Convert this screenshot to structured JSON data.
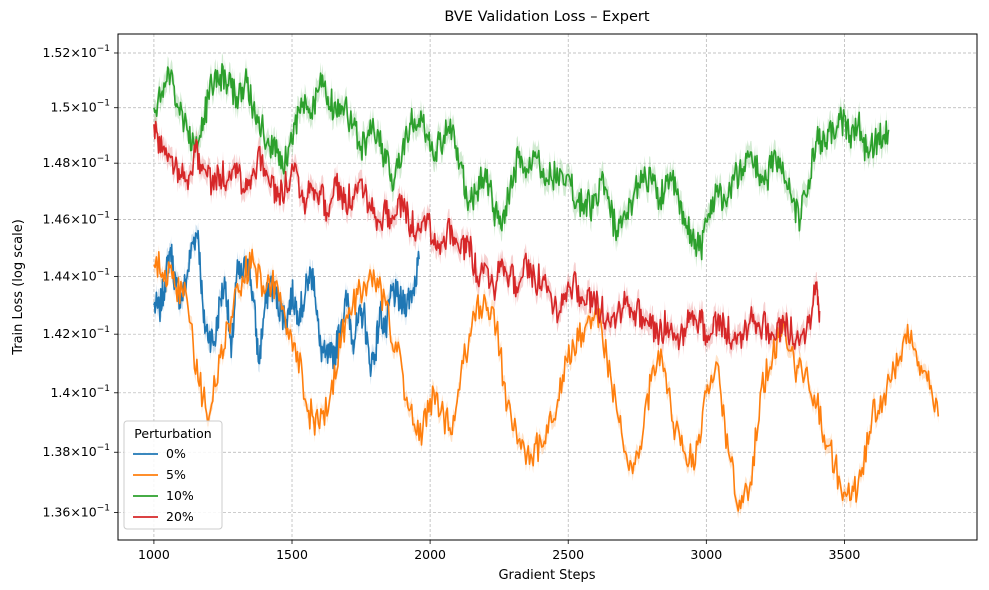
{
  "chart_data": {
    "type": "line",
    "title": "BVE Validation Loss – Expert",
    "xlabel": "Gradient Steps",
    "ylabel": "Train Loss (log scale)",
    "x_scale": "linear",
    "y_scale": "log",
    "xlim": [
      870,
      3980
    ],
    "ylim": [
      0.1351,
      0.1527
    ],
    "x_ticks": [
      1000,
      1500,
      2000,
      2500,
      3000,
      3500
    ],
    "y_ticks": [
      {
        "value": 0.136,
        "mant": "1.36",
        "exp": "−1"
      },
      {
        "value": 0.138,
        "mant": "1.38",
        "exp": "−1"
      },
      {
        "value": 0.14,
        "mant": "1.4",
        "exp": "−1"
      },
      {
        "value": 0.142,
        "mant": "1.42",
        "exp": "−1"
      },
      {
        "value": 0.144,
        "mant": "1.44",
        "exp": "−1"
      },
      {
        "value": 0.146,
        "mant": "1.46",
        "exp": "−1"
      },
      {
        "value": 0.148,
        "mant": "1.48",
        "exp": "−1"
      },
      {
        "value": 0.15,
        "mant": "1.5",
        "exp": "−1"
      },
      {
        "value": 0.152,
        "mant": "1.52",
        "exp": "−1"
      }
    ],
    "tick_base": "10",
    "grid": true,
    "legend": {
      "title": "Perturbation",
      "placement": "lower-left"
    },
    "series": [
      {
        "name": "0%",
        "color": "#1f77b4",
        "band": 0.0003,
        "x": [
          1000,
          1020,
          1040,
          1060,
          1080,
          1100,
          1120,
          1140,
          1160,
          1180,
          1200,
          1220,
          1240,
          1260,
          1280,
          1300,
          1320,
          1340,
          1360,
          1380,
          1400,
          1420,
          1440,
          1460,
          1480,
          1500,
          1520,
          1540,
          1560,
          1580,
          1600,
          1620,
          1640,
          1660,
          1680,
          1700,
          1720,
          1740,
          1760,
          1780,
          1800,
          1820,
          1840,
          1860,
          1880,
          1900,
          1920,
          1940,
          1960
        ],
        "y": [
          0.143,
          0.1428,
          0.1438,
          0.145,
          0.1436,
          0.1432,
          0.144,
          0.1452,
          0.1456,
          0.1424,
          0.142,
          0.1417,
          0.1432,
          0.1438,
          0.1412,
          0.1441,
          0.144,
          0.1446,
          0.1432,
          0.141,
          0.1428,
          0.1438,
          0.1434,
          0.1428,
          0.1425,
          0.1434,
          0.1428,
          0.143,
          0.144,
          0.144,
          0.1416,
          0.1412,
          0.1412,
          0.1415,
          0.1425,
          0.1432,
          0.1418,
          0.1424,
          0.1428,
          0.141,
          0.1413,
          0.1428,
          0.142,
          0.1435,
          0.1433,
          0.143,
          0.1432,
          0.1436,
          0.1446
        ]
      },
      {
        "name": "5%",
        "color": "#ff7f0e",
        "band": 0.00025,
        "x": [
          1000,
          1040,
          1080,
          1120,
          1160,
          1200,
          1240,
          1280,
          1320,
          1360,
          1400,
          1440,
          1480,
          1520,
          1560,
          1600,
          1640,
          1680,
          1720,
          1760,
          1800,
          1840,
          1880,
          1920,
          1960,
          2000,
          2040,
          2080,
          2120,
          2160,
          2200,
          2240,
          2280,
          2320,
          2360,
          2400,
          2440,
          2480,
          2520,
          2560,
          2600,
          2640,
          2680,
          2720,
          2760,
          2800,
          2840,
          2880,
          2920,
          2960,
          3000,
          3040,
          3080,
          3120,
          3160,
          3200,
          3240,
          3280,
          3320,
          3360,
          3400,
          3440,
          3480,
          3520,
          3560,
          3600,
          3640,
          3680,
          3720,
          3760,
          3800,
          3840
        ],
        "y": [
          0.1444,
          0.1442,
          0.1436,
          0.1432,
          0.1404,
          0.1392,
          0.1412,
          0.1426,
          0.144,
          0.1445,
          0.1434,
          0.1438,
          0.142,
          0.1414,
          0.1394,
          0.1388,
          0.14,
          0.142,
          0.143,
          0.1438,
          0.1438,
          0.143,
          0.1414,
          0.1395,
          0.1384,
          0.1398,
          0.1394,
          0.1386,
          0.141,
          0.1427,
          0.1432,
          0.1422,
          0.1396,
          0.1384,
          0.1376,
          0.1384,
          0.139,
          0.1406,
          0.1416,
          0.1422,
          0.143,
          0.1412,
          0.1392,
          0.1374,
          0.1382,
          0.1404,
          0.1412,
          0.139,
          0.138,
          0.1376,
          0.14,
          0.141,
          0.138,
          0.1364,
          0.137,
          0.1402,
          0.1412,
          0.1424,
          0.1408,
          0.1408,
          0.1396,
          0.1382,
          0.1372,
          0.1364,
          0.1372,
          0.1392,
          0.1398,
          0.1408,
          0.142,
          0.1414,
          0.1404,
          0.1392
        ]
      },
      {
        "name": "10%",
        "color": "#2ca02c",
        "band": 0.0004,
        "x": [
          1000,
          1030,
          1060,
          1090,
          1120,
          1150,
          1180,
          1210,
          1240,
          1270,
          1300,
          1330,
          1360,
          1390,
          1420,
          1450,
          1480,
          1510,
          1540,
          1570,
          1600,
          1630,
          1660,
          1690,
          1720,
          1750,
          1780,
          1810,
          1840,
          1870,
          1900,
          1930,
          1960,
          1990,
          2020,
          2050,
          2080,
          2110,
          2140,
          2170,
          2200,
          2230,
          2260,
          2290,
          2320,
          2350,
          2380,
          2410,
          2440,
          2470,
          2500,
          2530,
          2560,
          2590,
          2620,
          2650,
          2680,
          2710,
          2740,
          2770,
          2800,
          2830,
          2860,
          2890,
          2920,
          2950,
          2980,
          3010,
          3040,
          3070,
          3100,
          3130,
          3160,
          3190,
          3220,
          3250,
          3280,
          3310,
          3340,
          3370,
          3400,
          3430,
          3460,
          3490,
          3520,
          3550,
          3580,
          3610,
          3640,
          3660
        ],
        "y": [
          0.15,
          0.1506,
          0.1512,
          0.15,
          0.1492,
          0.1486,
          0.1496,
          0.1508,
          0.1512,
          0.1508,
          0.1504,
          0.151,
          0.15,
          0.1494,
          0.1486,
          0.1485,
          0.148,
          0.1494,
          0.1502,
          0.1498,
          0.1508,
          0.1504,
          0.1498,
          0.15,
          0.1494,
          0.1486,
          0.149,
          0.1492,
          0.148,
          0.1474,
          0.1486,
          0.1494,
          0.1496,
          0.149,
          0.1484,
          0.149,
          0.1492,
          0.148,
          0.1466,
          0.147,
          0.1478,
          0.1464,
          0.1456,
          0.1472,
          0.1482,
          0.1478,
          0.1484,
          0.1478,
          0.1474,
          0.1478,
          0.1476,
          0.1466,
          0.1466,
          0.1464,
          0.1474,
          0.1464,
          0.1454,
          0.146,
          0.147,
          0.1476,
          0.1474,
          0.1466,
          0.1476,
          0.147,
          0.1458,
          0.1454,
          0.145,
          0.1462,
          0.1472,
          0.1466,
          0.1474,
          0.1478,
          0.1484,
          0.1476,
          0.1474,
          0.1484,
          0.1476,
          0.1466,
          0.146,
          0.1474,
          0.1488,
          0.1486,
          0.1492,
          0.1496,
          0.149,
          0.1494,
          0.1484,
          0.1488,
          0.149,
          0.1492
        ]
      },
      {
        "name": "20%",
        "color": "#d62728",
        "band": 0.00035,
        "x": [
          1000,
          1030,
          1060,
          1090,
          1120,
          1150,
          1180,
          1210,
          1240,
          1270,
          1300,
          1330,
          1360,
          1390,
          1420,
          1450,
          1480,
          1510,
          1540,
          1570,
          1600,
          1630,
          1660,
          1690,
          1720,
          1750,
          1780,
          1810,
          1840,
          1870,
          1900,
          1930,
          1960,
          1990,
          2020,
          2050,
          2080,
          2110,
          2140,
          2170,
          2200,
          2230,
          2260,
          2290,
          2320,
          2350,
          2380,
          2410,
          2440,
          2470,
          2500,
          2530,
          2560,
          2590,
          2620,
          2650,
          2680,
          2710,
          2740,
          2770,
          2800,
          2830,
          2860,
          2890,
          2920,
          2950,
          2980,
          3010,
          3040,
          3070,
          3100,
          3130,
          3160,
          3190,
          3220,
          3250,
          3280,
          3310,
          3340,
          3370,
          3400,
          3410
        ],
        "y": [
          0.1494,
          0.1484,
          0.1482,
          0.1478,
          0.1474,
          0.1484,
          0.1478,
          0.1472,
          0.1476,
          0.1474,
          0.148,
          0.147,
          0.1478,
          0.1482,
          0.1472,
          0.1468,
          0.1472,
          0.148,
          0.1466,
          0.1472,
          0.147,
          0.1462,
          0.1472,
          0.1466,
          0.1468,
          0.1474,
          0.1466,
          0.146,
          0.1462,
          0.146,
          0.1466,
          0.1458,
          0.1456,
          0.1462,
          0.145,
          0.1454,
          0.1456,
          0.1448,
          0.1452,
          0.144,
          0.1444,
          0.1436,
          0.1446,
          0.144,
          0.1436,
          0.1444,
          0.1438,
          0.144,
          0.1432,
          0.1428,
          0.1438,
          0.1436,
          0.143,
          0.1432,
          0.1428,
          0.1424,
          0.1428,
          0.1432,
          0.1428,
          0.1426,
          0.1422,
          0.142,
          0.1424,
          0.1418,
          0.1422,
          0.1428,
          0.1424,
          0.1418,
          0.1424,
          0.1422,
          0.1418,
          0.142,
          0.1426,
          0.1424,
          0.1422,
          0.1418,
          0.1424,
          0.142,
          0.1418,
          0.1424,
          0.1438,
          0.1428
        ]
      }
    ]
  }
}
